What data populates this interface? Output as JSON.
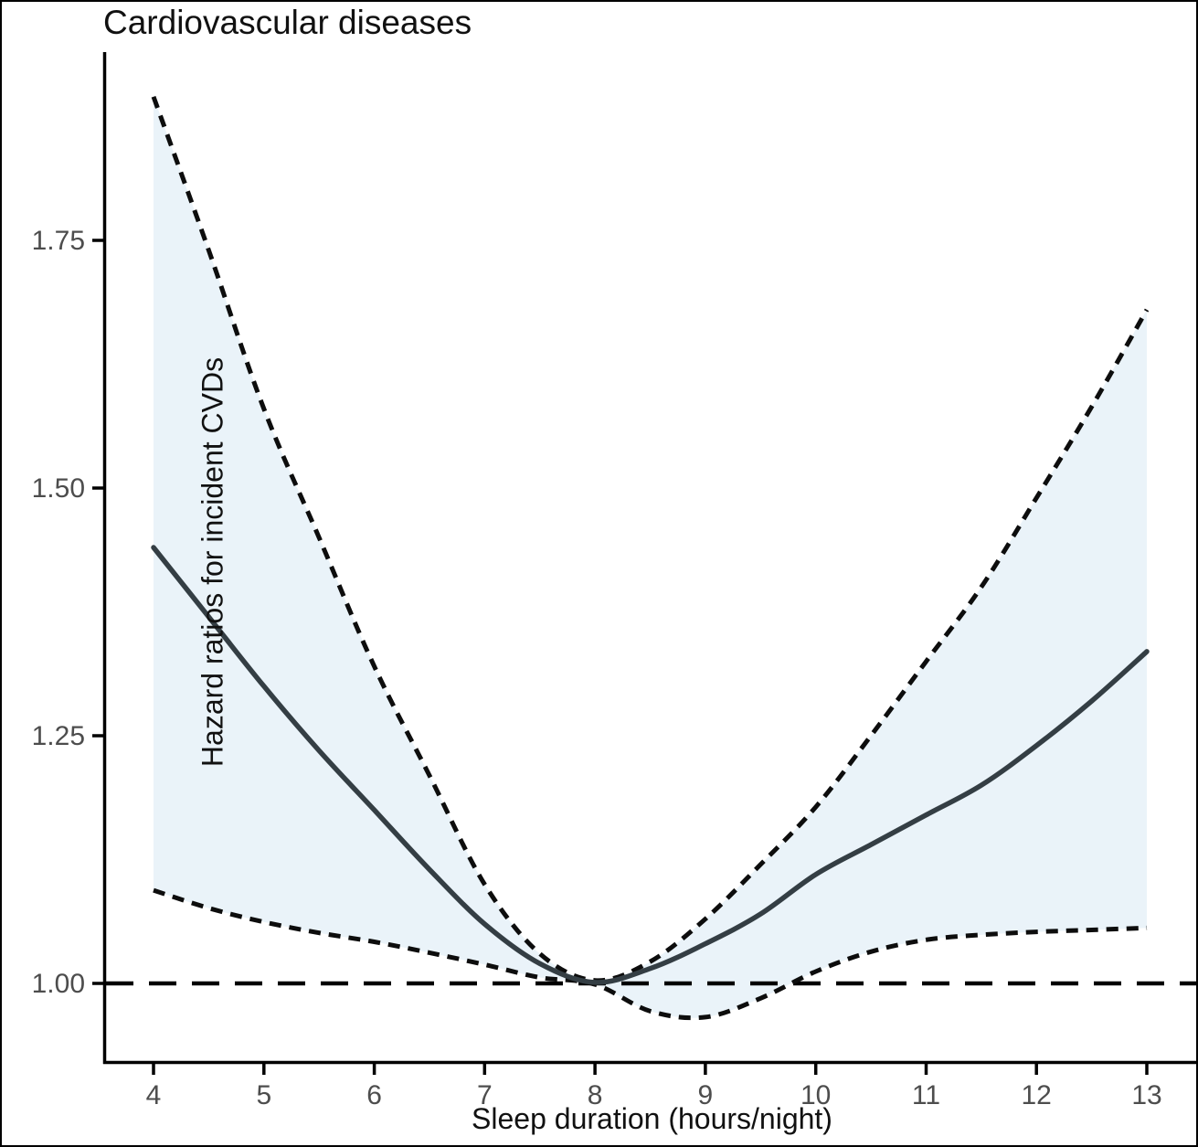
{
  "title": "Cardiovascular diseases",
  "x_axis": {
    "label": "Sleep duration (hours/night)",
    "tick_labels": [
      "4",
      "5",
      "6",
      "7",
      "8",
      "9",
      "10",
      "11",
      "12",
      "13"
    ]
  },
  "y_axis": {
    "label": "Hazard ratios for incident CVDs",
    "tick_labels": [
      "1.00",
      "1.25",
      "1.50",
      "1.75"
    ]
  },
  "colors": {
    "solid_line": "#343e44",
    "ci_dashed_line": "#0d0d0d",
    "reference_line": "#000000",
    "band_fill": "#eaf3f9",
    "axis_line": "#000000",
    "tick_label": "#4d4d4d",
    "title_text": "#111111",
    "background": "#ffffff"
  },
  "chart_data": {
    "type": "line",
    "title": "Cardiovascular diseases",
    "xlabel": "Sleep duration (hours/night)",
    "ylabel": "Hazard ratios for incident CVDs",
    "x": [
      4,
      4.5,
      5,
      5.5,
      6,
      6.5,
      7,
      7.5,
      8,
      8.5,
      9,
      9.5,
      10,
      10.5,
      11,
      11.5,
      12,
      12.5,
      13
    ],
    "series": [
      {
        "name": "hazard_ratio",
        "style": "solid",
        "values": [
          1.44,
          1.37,
          1.3,
          1.235,
          1.175,
          1.115,
          1.06,
          1.02,
          1.001,
          1.015,
          1.04,
          1.07,
          1.11,
          1.14,
          1.17,
          1.2,
          1.24,
          1.285,
          1.335
        ]
      },
      {
        "name": "upper_95ci",
        "style": "dashed",
        "values": [
          1.895,
          1.74,
          1.58,
          1.45,
          1.32,
          1.21,
          1.1,
          1.03,
          1.003,
          1.022,
          1.065,
          1.12,
          1.178,
          1.25,
          1.325,
          1.4,
          1.49,
          1.582,
          1.68
        ]
      },
      {
        "name": "lower_95ci",
        "style": "dashed",
        "values": [
          1.094,
          1.076,
          1.062,
          1.051,
          1.042,
          1.031,
          1.019,
          1.006,
          0.999,
          0.972,
          0.966,
          0.985,
          1.012,
          1.032,
          1.044,
          1.049,
          1.052,
          1.054,
          1.056
        ]
      }
    ],
    "confidence_band": {
      "between": [
        "upper_95ci",
        "lower_95ci"
      ],
      "fill": "#eaf3f9"
    },
    "reference_line_y": 1.0,
    "x_ticks": [
      4,
      5,
      6,
      7,
      8,
      9,
      10,
      11,
      12,
      13
    ],
    "y_ticks": [
      1.0,
      1.25,
      1.5,
      1.75
    ],
    "y_tick_labels": [
      "1.00",
      "1.25",
      "1.50",
      "1.75"
    ],
    "xlim": [
      3.55,
      13.46
    ],
    "ylim": [
      0.92,
      1.94
    ],
    "grid": false,
    "legend_position": "none"
  }
}
